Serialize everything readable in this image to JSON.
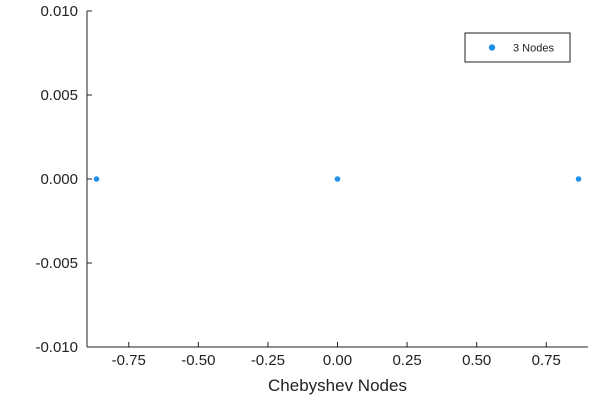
{
  "chart_data": {
    "type": "scatter",
    "title": "",
    "xlabel": "Chebyshev Nodes",
    "ylabel": "",
    "xlim": [
      -0.9,
      0.9
    ],
    "ylim": [
      -0.01,
      0.01
    ],
    "x_ticks": [
      -0.75,
      -0.5,
      -0.25,
      0.0,
      0.25,
      0.5,
      0.75
    ],
    "x_tick_labels": [
      "-0.75",
      "-0.50",
      "-0.25",
      "0.00",
      "0.25",
      "0.50",
      "0.75"
    ],
    "y_ticks": [
      0.01,
      0.005,
      0.0,
      -0.005,
      -0.01
    ],
    "y_tick_labels": [
      "0.010",
      "0.005",
      "0.000",
      "-0.005",
      "-0.010"
    ],
    "grid": false,
    "legend_position": "top-right",
    "series": [
      {
        "name": "3 Nodes",
        "color": "#1E8FEA",
        "x": [
          -0.866,
          0.0,
          0.866
        ],
        "y": [
          0.0,
          0.0,
          0.0
        ]
      }
    ]
  }
}
